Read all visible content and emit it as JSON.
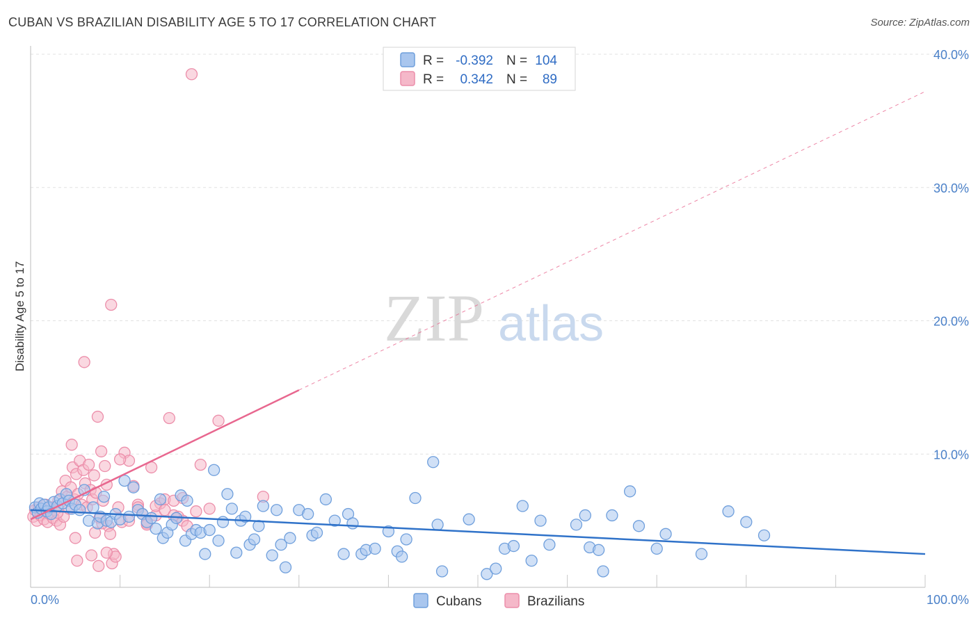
{
  "header": {
    "title": "CUBAN VS BRAZILIAN DISABILITY AGE 5 TO 17 CORRELATION CHART",
    "source": "Source: ZipAtlas.com"
  },
  "watermark": {
    "zip": "ZIP",
    "atlas": "atlas"
  },
  "colors": {
    "cubans_fill": "#a9c6ee",
    "cubans_stroke": "#6f9fdc",
    "cubans_line": "#2f72c9",
    "brazilians_fill": "#f5b8c9",
    "brazilians_stroke": "#ec8eaa",
    "brazilians_line": "#e8678f",
    "grid": "#e1e1e1",
    "axis_text": "#4a80c8"
  },
  "stats_legend": {
    "rows": [
      {
        "r_label": "R =",
        "r_value": "-0.392",
        "n_label": "N =",
        "n_value": "104"
      },
      {
        "r_label": "R =",
        "r_value": "0.342",
        "n_label": "N =",
        "n_value": "89"
      }
    ]
  },
  "bottom_legend": {
    "items": [
      "Cubans",
      "Brazilians"
    ]
  },
  "chart_data": {
    "type": "scatter",
    "title": "CUBAN VS BRAZILIAN DISABILITY AGE 5 TO 17 CORRELATION CHART",
    "xlabel": "",
    "ylabel": "Disability Age 5 to 17",
    "xlim": [
      0,
      100
    ],
    "ylim": [
      0,
      40
    ],
    "x_tick_labels": [
      "0.0%",
      "100.0%"
    ],
    "y_ticks": [
      10,
      20,
      30,
      40
    ],
    "y_tick_labels": [
      "10.0%",
      "20.0%",
      "30.0%",
      "40.0%"
    ],
    "grid": true,
    "series": [
      {
        "name": "Cubans",
        "r": -0.392,
        "n": 104,
        "trend": {
          "x": [
            0,
            100
          ],
          "y": [
            5.8,
            2.5
          ]
        },
        "points": [
          [
            0.5,
            6.0
          ],
          [
            0.8,
            5.6
          ],
          [
            1.0,
            6.3
          ],
          [
            1.2,
            5.9
          ],
          [
            1.5,
            6.2
          ],
          [
            1.8,
            5.7
          ],
          [
            2.0,
            6.0
          ],
          [
            2.3,
            5.5
          ],
          [
            2.6,
            6.4
          ],
          [
            3.0,
            6.1
          ],
          [
            3.3,
            6.6
          ],
          [
            3.6,
            6.3
          ],
          [
            4.0,
            7.0
          ],
          [
            4.3,
            6.5
          ],
          [
            4.6,
            5.9
          ],
          [
            5.0,
            6.2
          ],
          [
            5.5,
            5.8
          ],
          [
            6.0,
            7.3
          ],
          [
            6.5,
            5.0
          ],
          [
            7.0,
            6.0
          ],
          [
            7.5,
            4.8
          ],
          [
            7.8,
            5.3
          ],
          [
            8.2,
            6.8
          ],
          [
            8.5,
            5.0
          ],
          [
            9.0,
            4.9
          ],
          [
            9.5,
            5.5
          ],
          [
            10.0,
            5.1
          ],
          [
            10.5,
            8.0
          ],
          [
            11.0,
            5.3
          ],
          [
            11.5,
            7.5
          ],
          [
            12.0,
            5.8
          ],
          [
            12.5,
            5.5
          ],
          [
            13.0,
            4.9
          ],
          [
            13.5,
            5.2
          ],
          [
            14.0,
            4.4
          ],
          [
            14.5,
            6.6
          ],
          [
            14.8,
            3.7
          ],
          [
            15.3,
            4.1
          ],
          [
            15.8,
            4.7
          ],
          [
            16.3,
            5.2
          ],
          [
            16.8,
            6.9
          ],
          [
            17.3,
            3.5
          ],
          [
            17.5,
            6.5
          ],
          [
            18.0,
            4.0
          ],
          [
            18.5,
            4.3
          ],
          [
            19.0,
            4.1
          ],
          [
            19.5,
            2.5
          ],
          [
            20.0,
            4.3
          ],
          [
            20.5,
            8.8
          ],
          [
            21.0,
            3.5
          ],
          [
            21.5,
            4.9
          ],
          [
            22.0,
            7.0
          ],
          [
            22.5,
            5.9
          ],
          [
            23.0,
            2.6
          ],
          [
            23.5,
            5.0
          ],
          [
            24.0,
            5.3
          ],
          [
            24.5,
            3.2
          ],
          [
            25.0,
            3.6
          ],
          [
            25.5,
            4.6
          ],
          [
            26.0,
            6.1
          ],
          [
            27.0,
            2.4
          ],
          [
            27.5,
            5.8
          ],
          [
            28.0,
            3.2
          ],
          [
            28.5,
            1.5
          ],
          [
            29.0,
            3.7
          ],
          [
            30.0,
            5.8
          ],
          [
            31.0,
            5.5
          ],
          [
            31.5,
            3.9
          ],
          [
            32.0,
            4.1
          ],
          [
            33.0,
            6.6
          ],
          [
            34.0,
            5.0
          ],
          [
            35.0,
            2.5
          ],
          [
            35.5,
            5.5
          ],
          [
            36.0,
            4.8
          ],
          [
            37.0,
            2.5
          ],
          [
            37.5,
            2.8
          ],
          [
            38.5,
            2.9
          ],
          [
            40.0,
            4.2
          ],
          [
            41.0,
            2.7
          ],
          [
            41.5,
            2.3
          ],
          [
            42.0,
            3.6
          ],
          [
            43.0,
            6.7
          ],
          [
            45.0,
            9.4
          ],
          [
            45.5,
            4.7
          ],
          [
            46.0,
            1.2
          ],
          [
            49.0,
            5.1
          ],
          [
            51.0,
            1.0
          ],
          [
            52.0,
            1.4
          ],
          [
            53.0,
            2.9
          ],
          [
            54.0,
            3.1
          ],
          [
            55.0,
            6.1
          ],
          [
            56.0,
            2.0
          ],
          [
            57.0,
            5.0
          ],
          [
            58.0,
            3.2
          ],
          [
            61.0,
            4.7
          ],
          [
            62.0,
            5.4
          ],
          [
            62.5,
            3.0
          ],
          [
            63.5,
            2.8
          ],
          [
            64.0,
            1.2
          ],
          [
            65.0,
            5.4
          ],
          [
            67.0,
            7.2
          ],
          [
            68.0,
            4.6
          ],
          [
            70.0,
            2.9
          ],
          [
            71.0,
            4.0
          ],
          [
            75.0,
            2.5
          ],
          [
            78.0,
            5.7
          ],
          [
            80.0,
            4.9
          ],
          [
            82.0,
            3.9
          ]
        ]
      },
      {
        "name": "Brazilians",
        "r": 0.342,
        "n": 89,
        "trend": {
          "x": [
            0,
            30
          ],
          "y": [
            5.1,
            14.8
          ],
          "x_dashed_end": 100,
          "y_dashed_end": 37.2
        },
        "points": [
          [
            0.3,
            5.3
          ],
          [
            0.5,
            5.8
          ],
          [
            0.7,
            5.0
          ],
          [
            0.9,
            6.0
          ],
          [
            1.1,
            5.4
          ],
          [
            1.3,
            5.7
          ],
          [
            1.5,
            5.1
          ],
          [
            1.7,
            6.2
          ],
          [
            1.9,
            4.9
          ],
          [
            2.1,
            5.5
          ],
          [
            2.3,
            6.0
          ],
          [
            2.5,
            5.2
          ],
          [
            2.7,
            5.8
          ],
          [
            2.9,
            5.0
          ],
          [
            3.1,
            6.5
          ],
          [
            3.3,
            4.7
          ],
          [
            3.5,
            7.2
          ],
          [
            3.7,
            5.3
          ],
          [
            3.9,
            8.0
          ],
          [
            4.1,
            6.8
          ],
          [
            4.3,
            5.9
          ],
          [
            4.5,
            7.5
          ],
          [
            4.7,
            9.0
          ],
          [
            4.9,
            6.6
          ],
          [
            5.1,
            8.5
          ],
          [
            5.3,
            7.0
          ],
          [
            5.5,
            9.5
          ],
          [
            5.7,
            6.2
          ],
          [
            5.9,
            8.8
          ],
          [
            6.1,
            7.8
          ],
          [
            6.3,
            6.0
          ],
          [
            6.5,
            9.2
          ],
          [
            6.7,
            7.3
          ],
          [
            6.9,
            6.6
          ],
          [
            7.1,
            8.4
          ],
          [
            7.3,
            7.1
          ],
          [
            7.5,
            12.8
          ],
          [
            7.7,
            5.2
          ],
          [
            7.9,
            10.2
          ],
          [
            8.1,
            6.5
          ],
          [
            8.3,
            9.1
          ],
          [
            8.5,
            7.7
          ],
          [
            8.7,
            4.6
          ],
          [
            8.9,
            4.0
          ],
          [
            9.1,
            1.8
          ],
          [
            9.3,
            2.5
          ],
          [
            9.5,
            2.3
          ],
          [
            9.8,
            6.0
          ],
          [
            10.2,
            4.9
          ],
          [
            10.5,
            10.1
          ],
          [
            11.0,
            9.5
          ],
          [
            11.5,
            7.6
          ],
          [
            12.0,
            6.2
          ],
          [
            12.5,
            5.5
          ],
          [
            13.0,
            4.8
          ],
          [
            13.5,
            9.0
          ],
          [
            14.0,
            5.4
          ],
          [
            14.5,
            6.3
          ],
          [
            15.0,
            6.6
          ],
          [
            15.5,
            12.7
          ],
          [
            16.0,
            6.5
          ],
          [
            16.5,
            5.3
          ],
          [
            17.0,
            5.0
          ],
          [
            17.5,
            4.6
          ],
          [
            18.0,
            38.5
          ],
          [
            18.5,
            5.7
          ],
          [
            19.0,
            9.2
          ],
          [
            20.0,
            5.9
          ],
          [
            21.0,
            12.5
          ],
          [
            4.6,
            10.7
          ],
          [
            5.0,
            3.7
          ],
          [
            5.2,
            2.0
          ],
          [
            6.0,
            16.9
          ],
          [
            6.8,
            2.4
          ],
          [
            7.2,
            4.1
          ],
          [
            7.6,
            1.6
          ],
          [
            8.0,
            4.8
          ],
          [
            8.5,
            2.6
          ],
          [
            9.0,
            21.2
          ],
          [
            10.0,
            9.6
          ],
          [
            11.0,
            5.0
          ],
          [
            12.0,
            6.0
          ],
          [
            13.0,
            4.7
          ],
          [
            14.0,
            6.1
          ],
          [
            15.0,
            5.8
          ],
          [
            16.0,
            5.4
          ],
          [
            17.0,
            6.7
          ],
          [
            26.0,
            6.8
          ],
          [
            3.0,
            5.6
          ]
        ]
      }
    ]
  }
}
